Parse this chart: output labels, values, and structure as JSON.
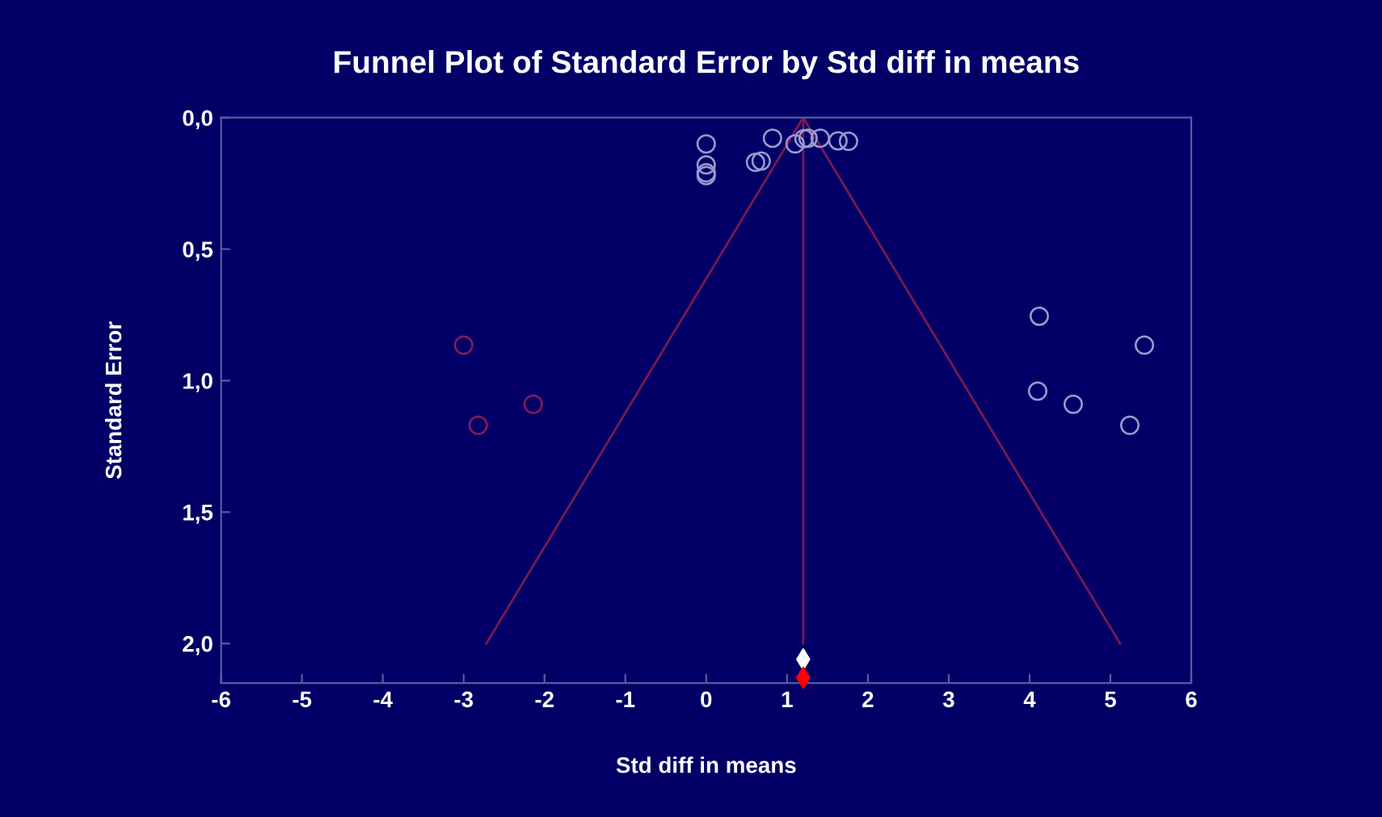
{
  "chart_data": {
    "type": "scatter",
    "title": "Funnel Plot of Standard Error by Std diff in means",
    "xlabel": "Std diff in means",
    "ylabel": "Standard Error",
    "xlim": [
      -6,
      6
    ],
    "xticks": [
      -6,
      -5,
      -4,
      -3,
      -2,
      -1,
      0,
      1,
      2,
      3,
      4,
      5,
      6
    ],
    "ylim": [
      2.15,
      0
    ],
    "yticks": [
      {
        "value": 0,
        "label": "0,0"
      },
      {
        "value": 0.5,
        "label": "0,5"
      },
      {
        "value": 1.0,
        "label": "1,0"
      },
      {
        "value": 1.5,
        "label": "1,5"
      },
      {
        "value": 2.0,
        "label": "2,0"
      }
    ],
    "grid": false,
    "legend": false,
    "series": [
      {
        "marker": "circle",
        "color": "#9a9ad0",
        "x": [
          0.0,
          0.0,
          0.0,
          0.0,
          0.82,
          0.61,
          0.68,
          1.1,
          1.21,
          1.26,
          1.41,
          1.63,
          1.76,
          4.12,
          5.42,
          4.1,
          4.54,
          5.24
        ],
        "values": [
          0.1,
          0.18,
          0.21,
          0.22,
          0.078,
          0.17,
          0.165,
          0.1,
          0.08,
          0.078,
          0.078,
          0.088,
          0.09,
          0.755,
          0.865,
          1.04,
          1.09,
          1.17
        ]
      },
      {
        "marker": "circle",
        "color": "#8a1a5a",
        "x": [
          -3.0,
          -2.82,
          -2.14
        ],
        "values": [
          0.865,
          1.17,
          1.09
        ]
      },
      {
        "type": "line",
        "marker": "none",
        "color": "#7a1a50",
        "x": [
          -2.72,
          1.2,
          5.12
        ],
        "values": [
          2.0,
          0,
          2.0
        ]
      },
      {
        "type": "line",
        "marker": "none",
        "color": "#7a1a50",
        "x": [
          1.2,
          1.2
        ],
        "values": [
          0,
          2.0
        ]
      },
      {
        "marker": "diamond",
        "color": "#ffffff",
        "x": [
          1.2
        ],
        "values": [
          2.06
        ]
      },
      {
        "marker": "diamond",
        "color": "#ff0000",
        "x": [
          1.2
        ],
        "values": [
          2.13
        ]
      }
    ]
  }
}
